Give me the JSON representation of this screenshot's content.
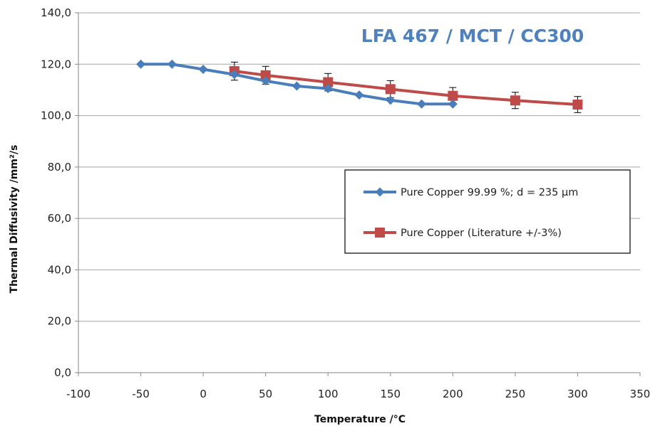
{
  "colors": {
    "series_blue": "#4a7ebb",
    "series_red": "#be4b48",
    "title": "#4f81bd",
    "grid": "#a6a6a6",
    "axis": "#868686",
    "error_bar": "#000000"
  },
  "chart_data": {
    "type": "line",
    "title": "LFA 467 / MCT / CC300",
    "xlabel": "Temperature /°C",
    "ylabel": "Thermal Diffusivity /mm²/s",
    "xlim": [
      -100,
      350
    ],
    "ylim": [
      0,
      140
    ],
    "x_ticks": [
      -100,
      -50,
      0,
      50,
      100,
      150,
      200,
      250,
      300,
      350
    ],
    "y_ticks": [
      0,
      20,
      40,
      60,
      80,
      100,
      120,
      140
    ],
    "x_tick_labels": [
      "-100",
      "-50",
      "0",
      "50",
      "100",
      "150",
      "200",
      "250",
      "300",
      "350"
    ],
    "y_tick_labels": [
      "0,0",
      "20,0",
      "40,0",
      "60,0",
      "80,0",
      "100,0",
      "120,0",
      "140,0"
    ],
    "grid": "horizontal",
    "legend_position": "center-right",
    "series": [
      {
        "name": "Pure Copper 99.99 %; d = 235 µm",
        "marker": "diamond",
        "x": [
          -50,
          -25,
          0,
          25,
          50,
          75,
          100,
          125,
          150,
          175,
          200
        ],
        "y": [
          120.0,
          120.0,
          118.0,
          116.0,
          113.5,
          111.5,
          110.5,
          108.0,
          106.0,
          104.5,
          104.5
        ]
      },
      {
        "name": "Pure Copper (Literature +/-3%)",
        "marker": "square",
        "error_percent": 3,
        "x": [
          25,
          50,
          100,
          150,
          200,
          250,
          300
        ],
        "y": [
          117.3,
          115.7,
          113.0,
          110.3,
          107.7,
          105.9,
          104.3
        ]
      }
    ]
  }
}
